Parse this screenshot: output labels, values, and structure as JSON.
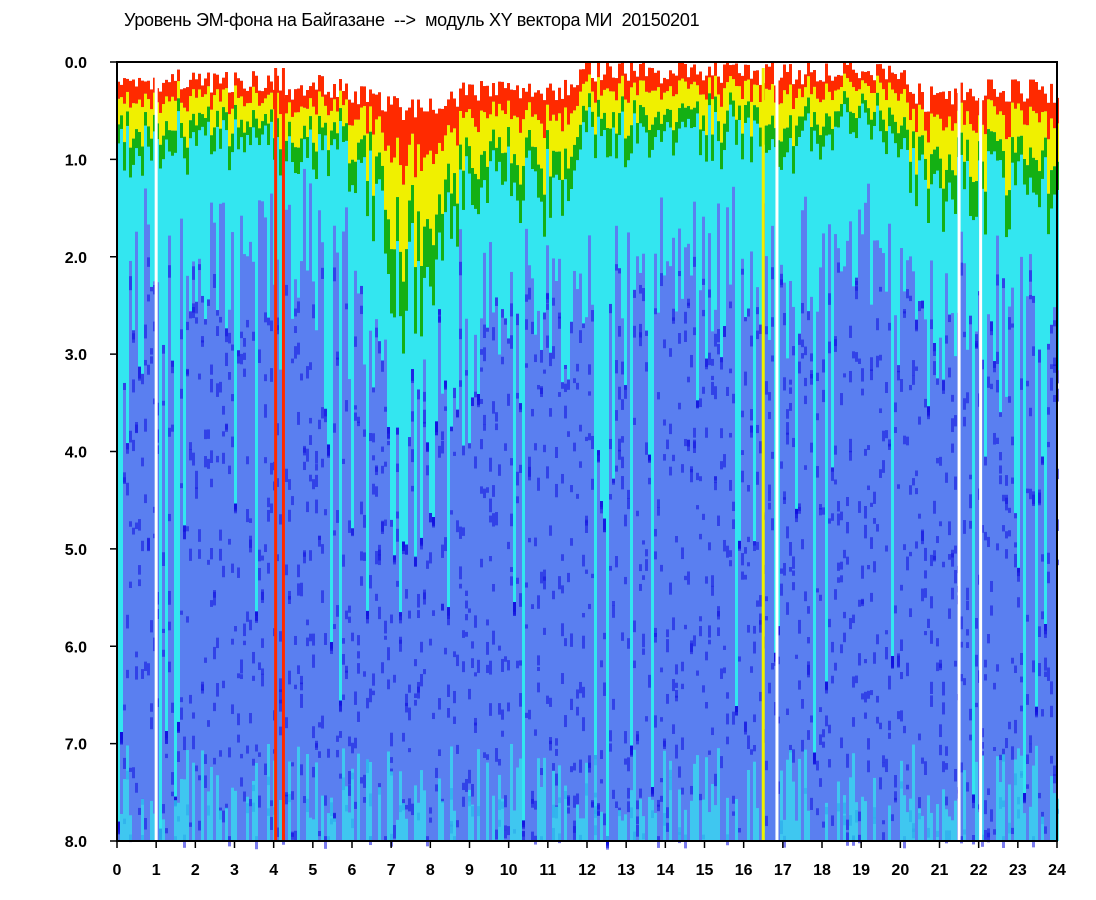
{
  "chart_data": {
    "type": "heatmap",
    "title": "Уровень ЭМ-фона на Байгазане  -->  модуль XY вектора МИ  20150201",
    "xlabel": "",
    "ylabel": "",
    "xlim": [
      0,
      24
    ],
    "ylim": [
      0,
      8
    ],
    "y_inverted": true,
    "x_ticks": [
      "0",
      "1",
      "2",
      "3",
      "4",
      "5",
      "6",
      "7",
      "8",
      "9",
      "10",
      "11",
      "12",
      "13",
      "14",
      "15",
      "16",
      "17",
      "18",
      "19",
      "20",
      "21",
      "22",
      "23",
      "24"
    ],
    "y_ticks": [
      "0.0",
      "1.0",
      "2.0",
      "3.0",
      "4.0",
      "5.0",
      "6.0",
      "7.0",
      "8.0"
    ],
    "colorscale": [
      "#1010e0",
      "#5a7ff0",
      "#33e6f0",
      "#14b014",
      "#f0f000",
      "#ff2a00"
    ],
    "upper_envelope": [
      [
        0,
        0.2
      ],
      [
        0.5,
        0.15
      ],
      [
        1,
        0.2
      ],
      [
        2,
        0.2
      ],
      [
        3,
        0.2
      ],
      [
        4,
        0.2
      ],
      [
        4.5,
        0.3
      ],
      [
        5,
        0.25
      ],
      [
        6,
        0.3
      ],
      [
        6.5,
        0.4
      ],
      [
        7,
        0.45
      ],
      [
        7.5,
        0.5
      ],
      [
        8,
        0.45
      ],
      [
        8.5,
        0.4
      ],
      [
        9,
        0.3
      ],
      [
        10,
        0.3
      ],
      [
        11,
        0.3
      ],
      [
        11.5,
        0.25
      ],
      [
        12,
        0.1
      ],
      [
        13,
        0.1
      ],
      [
        14,
        0.1
      ],
      [
        15,
        0.1
      ],
      [
        16,
        0.12
      ],
      [
        17,
        0.12
      ],
      [
        18,
        0.1
      ],
      [
        19,
        0.05
      ],
      [
        20,
        0.1
      ],
      [
        20.6,
        0.4
      ],
      [
        21,
        0.35
      ],
      [
        22,
        0.3
      ],
      [
        23,
        0.3
      ],
      [
        24,
        0.3
      ]
    ],
    "signal_depth": [
      [
        0,
        1.0
      ],
      [
        0.5,
        1.2
      ],
      [
        1,
        1.0
      ],
      [
        2,
        1.0
      ],
      [
        3,
        0.9
      ],
      [
        4,
        0.9
      ],
      [
        4.5,
        1.1
      ],
      [
        5,
        1.0
      ],
      [
        6,
        1.1
      ],
      [
        6.5,
        1.6
      ],
      [
        7,
        2.4
      ],
      [
        7.5,
        3.2
      ],
      [
        8,
        2.5
      ],
      [
        8.5,
        1.8
      ],
      [
        9,
        1.4
      ],
      [
        10,
        1.5
      ],
      [
        11,
        1.6
      ],
      [
        11.5,
        1.5
      ],
      [
        12,
        1.1
      ],
      [
        13,
        1.1
      ],
      [
        14,
        1.0
      ],
      [
        15,
        1.0
      ],
      [
        16,
        1.0
      ],
      [
        17,
        1.1
      ],
      [
        18,
        0.9
      ],
      [
        19,
        0.8
      ],
      [
        20,
        0.9
      ],
      [
        20.6,
        1.6
      ],
      [
        21,
        1.7
      ],
      [
        22,
        1.6
      ],
      [
        23,
        1.6
      ],
      [
        24,
        1.7
      ]
    ],
    "marked_lines": [
      {
        "x": 1.0,
        "color": "#ffffff"
      },
      {
        "x": 4.05,
        "color": "#ff2a00"
      },
      {
        "x": 4.25,
        "color": "#ff2a00"
      },
      {
        "x": 16.5,
        "color": "#f0f000"
      },
      {
        "x": 16.85,
        "color": "#ffffff"
      },
      {
        "x": 21.5,
        "color": "#ffffff"
      },
      {
        "x": 22.05,
        "color": "#ffffff"
      }
    ]
  }
}
